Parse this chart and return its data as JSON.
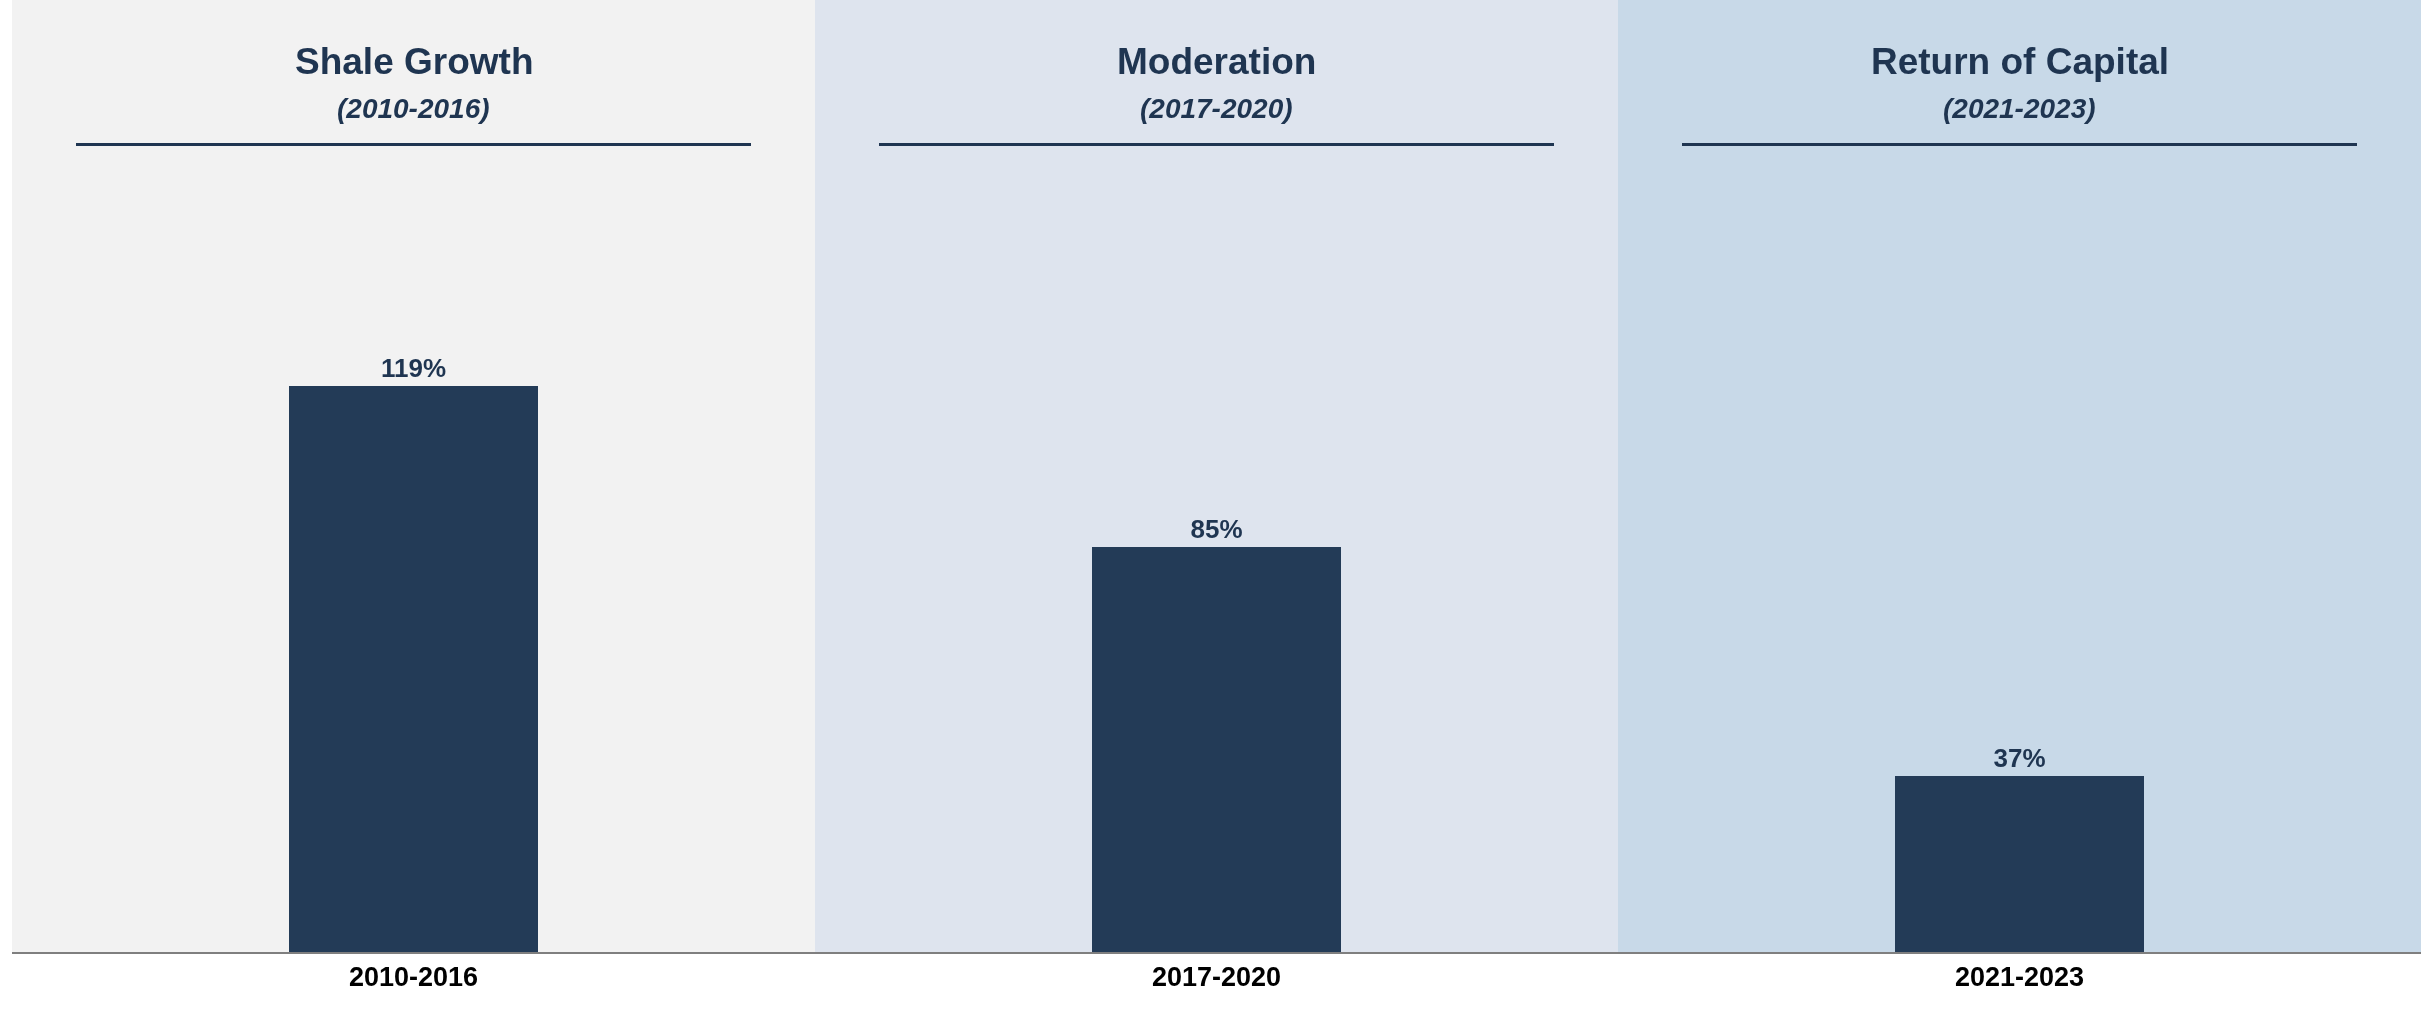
{
  "chart_data": {
    "type": "bar",
    "categories": [
      "2010-2016",
      "2017-2020",
      "2021-2023"
    ],
    "values": [
      119,
      85,
      37
    ],
    "color": "#233b57",
    "value_labels": [
      "119%",
      "85%",
      "37%"
    ],
    "ylim": [
      0,
      200
    ],
    "tick_labels": "x",
    "bands": [
      {
        "axis": "x",
        "from": "2010-2016",
        "to": "2010-2016",
        "label": "Shale Growth\n(2010-2016)",
        "color": "#f2f2f2"
      },
      {
        "axis": "x",
        "from": "2017-2020",
        "to": "2017-2020",
        "label": "Moderation\n(2017-2020)",
        "color": "#dee4ee"
      },
      {
        "axis": "x",
        "from": "2021-2023",
        "to": "2021-2023",
        "label": "Return of Capital\n(2021-2023)",
        "color": "#c8d9e8"
      }
    ]
  }
}
